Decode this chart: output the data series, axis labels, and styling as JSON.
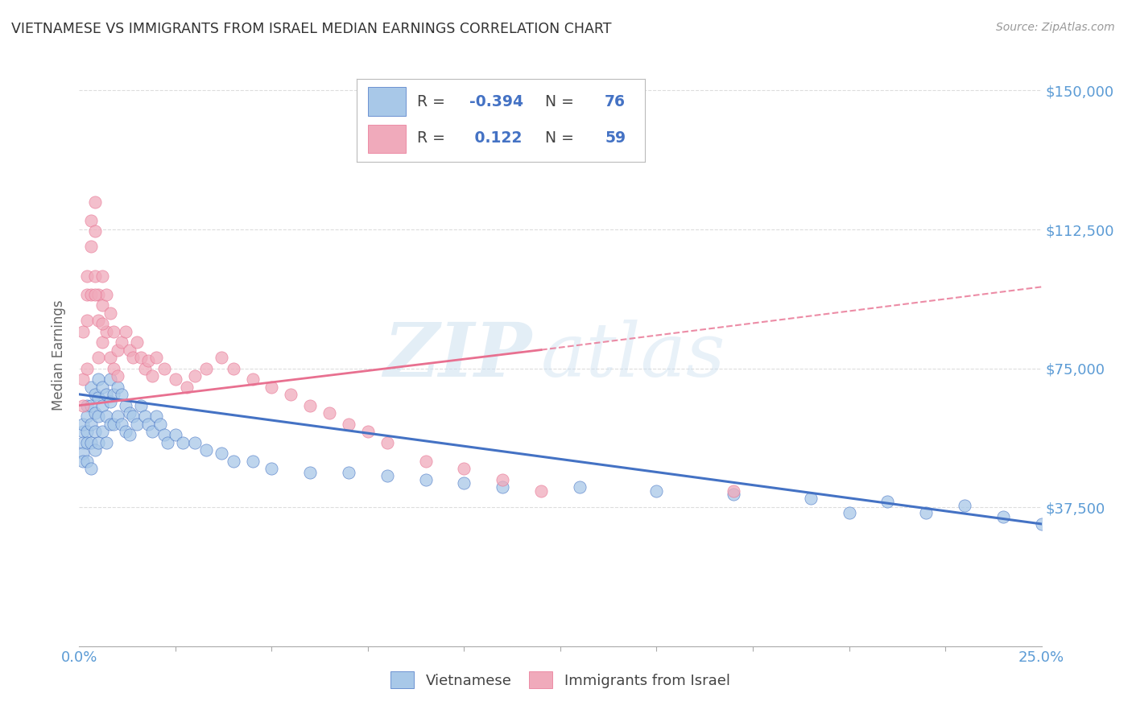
{
  "title": "VIETNAMESE VS IMMIGRANTS FROM ISRAEL MEDIAN EARNINGS CORRELATION CHART",
  "source": "Source: ZipAtlas.com",
  "ylabel": "Median Earnings",
  "yticks": [
    0,
    37500,
    75000,
    112500,
    150000
  ],
  "ytick_labels": [
    "",
    "$37,500",
    "$75,000",
    "$112,500",
    "$150,000"
  ],
  "xlim": [
    0.0,
    0.25
  ],
  "ylim": [
    0,
    157000
  ],
  "watermark_zip": "ZIP",
  "watermark_atlas": "atlas",
  "legend_r1_label": "R = ",
  "legend_r1_val": "-0.394",
  "legend_r1_n_label": "N = ",
  "legend_r1_n_val": "76",
  "legend_r2_label": "R = ",
  "legend_r2_val": "0.122",
  "legend_r2_n_label": "N = ",
  "legend_r2_n_val": "59",
  "blue_color": "#A8C8E8",
  "pink_color": "#F0AABB",
  "blue_line_color": "#4472C4",
  "pink_line_color": "#E87090",
  "title_color": "#333333",
  "axis_tick_color": "#5B9BD5",
  "ylabel_color": "#666666",
  "background_color": "#FFFFFF",
  "grid_color": "#DDDDDD",
  "blue_scatter_x": [
    0.001,
    0.001,
    0.001,
    0.001,
    0.001,
    0.002,
    0.002,
    0.002,
    0.002,
    0.002,
    0.003,
    0.003,
    0.003,
    0.003,
    0.003,
    0.004,
    0.004,
    0.004,
    0.004,
    0.005,
    0.005,
    0.005,
    0.005,
    0.006,
    0.006,
    0.006,
    0.007,
    0.007,
    0.007,
    0.008,
    0.008,
    0.008,
    0.009,
    0.009,
    0.01,
    0.01,
    0.011,
    0.011,
    0.012,
    0.012,
    0.013,
    0.013,
    0.014,
    0.015,
    0.016,
    0.017,
    0.018,
    0.019,
    0.02,
    0.021,
    0.022,
    0.023,
    0.025,
    0.027,
    0.03,
    0.033,
    0.037,
    0.04,
    0.045,
    0.05,
    0.06,
    0.07,
    0.08,
    0.09,
    0.1,
    0.11,
    0.13,
    0.15,
    0.17,
    0.19,
    0.21,
    0.23,
    0.25,
    0.2,
    0.22,
    0.24
  ],
  "blue_scatter_y": [
    58000,
    55000,
    52000,
    60000,
    50000,
    65000,
    62000,
    58000,
    55000,
    50000,
    70000,
    65000,
    60000,
    55000,
    48000,
    68000,
    63000,
    58000,
    53000,
    72000,
    67000,
    62000,
    55000,
    70000,
    65000,
    58000,
    68000,
    62000,
    55000,
    72000,
    66000,
    60000,
    68000,
    60000,
    70000,
    62000,
    68000,
    60000,
    65000,
    58000,
    63000,
    57000,
    62000,
    60000,
    65000,
    62000,
    60000,
    58000,
    62000,
    60000,
    57000,
    55000,
    57000,
    55000,
    55000,
    53000,
    52000,
    50000,
    50000,
    48000,
    47000,
    47000,
    46000,
    45000,
    44000,
    43000,
    43000,
    42000,
    41000,
    40000,
    39000,
    38000,
    33000,
    36000,
    36000,
    35000
  ],
  "pink_scatter_x": [
    0.001,
    0.001,
    0.001,
    0.002,
    0.002,
    0.002,
    0.002,
    0.003,
    0.003,
    0.003,
    0.004,
    0.004,
    0.004,
    0.005,
    0.005,
    0.005,
    0.006,
    0.006,
    0.006,
    0.007,
    0.007,
    0.008,
    0.008,
    0.009,
    0.009,
    0.01,
    0.011,
    0.012,
    0.013,
    0.014,
    0.015,
    0.016,
    0.017,
    0.018,
    0.019,
    0.02,
    0.022,
    0.025,
    0.028,
    0.03,
    0.033,
    0.037,
    0.04,
    0.045,
    0.05,
    0.055,
    0.06,
    0.065,
    0.07,
    0.075,
    0.08,
    0.09,
    0.1,
    0.11,
    0.12,
    0.17,
    0.004,
    0.006,
    0.01
  ],
  "pink_scatter_y": [
    85000,
    72000,
    65000,
    100000,
    95000,
    88000,
    75000,
    115000,
    108000,
    95000,
    120000,
    112000,
    100000,
    95000,
    88000,
    78000,
    100000,
    92000,
    82000,
    95000,
    85000,
    90000,
    78000,
    85000,
    75000,
    80000,
    82000,
    85000,
    80000,
    78000,
    82000,
    78000,
    75000,
    77000,
    73000,
    78000,
    75000,
    72000,
    70000,
    73000,
    75000,
    78000,
    75000,
    72000,
    70000,
    68000,
    65000,
    63000,
    60000,
    58000,
    55000,
    50000,
    48000,
    45000,
    42000,
    42000,
    95000,
    87000,
    73000
  ]
}
